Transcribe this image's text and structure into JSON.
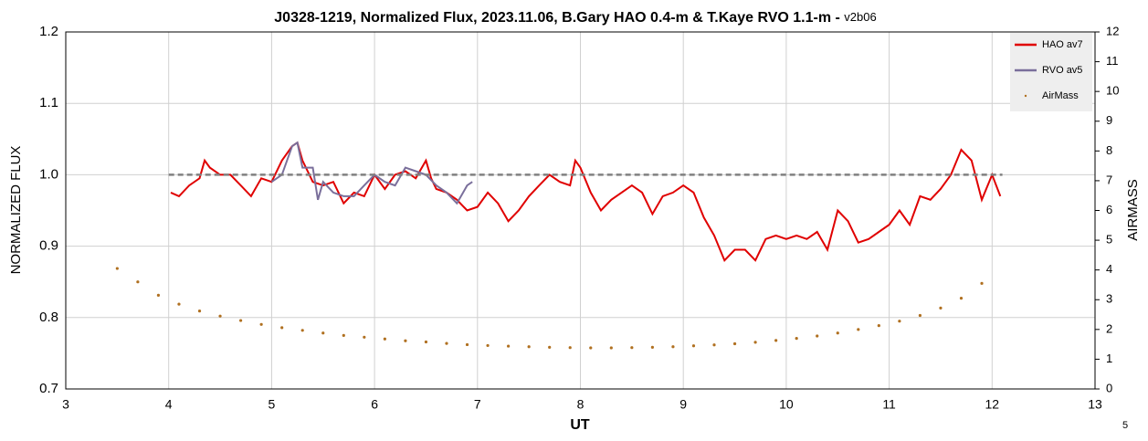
{
  "chart_data": {
    "type": "line",
    "title": "J0328-1219, Normalized Flux, 2023.11.06, B.Gary HAO 0.4-m & T.Kaye RVO 1.1-m - ",
    "subtitle": "v2b06",
    "x_label": "UT",
    "y_label": "NORMALIZED FLUX",
    "y2_label": "AIRMASS",
    "footnote": "5",
    "xlim": [
      3,
      13
    ],
    "xticks": [
      3,
      4,
      5,
      6,
      7,
      8,
      9,
      10,
      11,
      12,
      13
    ],
    "ylim": [
      0.7,
      1.2
    ],
    "yticks": [
      0.7,
      0.8,
      0.9,
      {
        "value": 1,
        "label": "1.0"
      },
      1.1,
      1.2
    ],
    "y2lim": [
      0,
      12
    ],
    "y2ticks": [
      0,
      1,
      2,
      3,
      4,
      5,
      6,
      7,
      8,
      9,
      10,
      11,
      12
    ],
    "grid": true,
    "legend": "top-right",
    "series": [
      {
        "name": "HAO av7",
        "color": "#e00000",
        "x": [
          4.02,
          4.1,
          4.2,
          4.3,
          4.35,
          4.4,
          4.5,
          4.6,
          4.7,
          4.8,
          4.9,
          5.0,
          5.1,
          5.2,
          5.25,
          5.3,
          5.4,
          5.5,
          5.6,
          5.7,
          5.8,
          5.9,
          6.0,
          6.1,
          6.2,
          6.3,
          6.4,
          6.5,
          6.55,
          6.6,
          6.7,
          6.8,
          6.9,
          7.0,
          7.1,
          7.2,
          7.3,
          7.4,
          7.5,
          7.6,
          7.7,
          7.8,
          7.9,
          7.95,
          8.0,
          8.1,
          8.2,
          8.3,
          8.4,
          8.5,
          8.6,
          8.7,
          8.8,
          8.9,
          9.0,
          9.1,
          9.2,
          9.3,
          9.4,
          9.5,
          9.6,
          9.7,
          9.8,
          9.9,
          10.0,
          10.1,
          10.2,
          10.3,
          10.4,
          10.5,
          10.6,
          10.7,
          10.8,
          10.9,
          11.0,
          11.1,
          11.2,
          11.3,
          11.4,
          11.5,
          11.6,
          11.7,
          11.8,
          11.9,
          12.0,
          12.08
        ],
        "values": [
          0.975,
          0.97,
          0.985,
          0.995,
          1.02,
          1.01,
          1.0,
          1.0,
          0.985,
          0.97,
          0.995,
          0.99,
          1.02,
          1.04,
          1.045,
          1.02,
          0.99,
          0.985,
          0.99,
          0.96,
          0.975,
          0.97,
          1.0,
          0.98,
          1.0,
          1.005,
          0.995,
          1.02,
          0.995,
          0.98,
          0.975,
          0.965,
          0.95,
          0.955,
          0.975,
          0.96,
          0.935,
          0.95,
          0.97,
          0.985,
          1.0,
          0.99,
          0.985,
          1.02,
          1.01,
          0.975,
          0.95,
          0.965,
          0.975,
          0.985,
          0.975,
          0.945,
          0.97,
          0.975,
          0.985,
          0.975,
          0.94,
          0.915,
          0.88,
          0.895,
          0.895,
          0.88,
          0.91,
          0.915,
          0.91,
          0.915,
          0.91,
          0.92,
          0.895,
          0.95,
          0.935,
          0.905,
          0.91,
          0.92,
          0.93,
          0.95,
          0.93,
          0.97,
          0.965,
          0.98,
          1.0,
          1.035,
          1.02,
          0.965,
          1.0,
          0.97
        ]
      },
      {
        "name": "RVO av5",
        "color": "#7a6f9b",
        "x": [
          5.0,
          5.1,
          5.2,
          5.25,
          5.3,
          5.4,
          5.45,
          5.5,
          5.6,
          5.7,
          5.8,
          5.9,
          6.0,
          6.1,
          6.2,
          6.3,
          6.4,
          6.5,
          6.6,
          6.7,
          6.8,
          6.9,
          6.95
        ],
        "values": [
          0.99,
          1.0,
          1.04,
          1.045,
          1.01,
          1.01,
          0.965,
          0.99,
          0.975,
          0.97,
          0.97,
          0.985,
          1.0,
          0.99,
          0.985,
          1.01,
          1.005,
          1.0,
          0.985,
          0.975,
          0.96,
          0.985,
          0.99
        ]
      },
      {
        "color": "#808080",
        "dashed": true,
        "x": [
          4.0,
          12.1
        ],
        "values": [
          1,
          1
        ]
      },
      {
        "name": "AirMass",
        "color": "#b07020",
        "axis": "y2",
        "style": "dots",
        "x": [
          3.5,
          3.7,
          3.9,
          4.1,
          4.3,
          4.5,
          4.7,
          4.9,
          5.1,
          5.3,
          5.5,
          5.7,
          5.9,
          6.1,
          6.3,
          6.5,
          6.7,
          6.9,
          7.1,
          7.3,
          7.5,
          7.7,
          7.9,
          8.1,
          8.3,
          8.5,
          8.7,
          8.9,
          9.1,
          9.3,
          9.5,
          9.7,
          9.9,
          10.1,
          10.3,
          10.5,
          10.7,
          10.9,
          11.1,
          11.3,
          11.5,
          11.7,
          11.9
        ],
        "values": [
          4.05,
          3.6,
          3.15,
          2.85,
          2.62,
          2.45,
          2.3,
          2.17,
          2.06,
          1.97,
          1.88,
          1.8,
          1.74,
          1.68,
          1.62,
          1.58,
          1.53,
          1.49,
          1.46,
          1.44,
          1.42,
          1.4,
          1.39,
          1.38,
          1.38,
          1.39,
          1.4,
          1.42,
          1.45,
          1.48,
          1.52,
          1.57,
          1.63,
          1.7,
          1.78,
          1.88,
          2.0,
          2.13,
          2.28,
          2.47,
          2.72,
          3.05,
          3.55
        ]
      }
    ]
  }
}
